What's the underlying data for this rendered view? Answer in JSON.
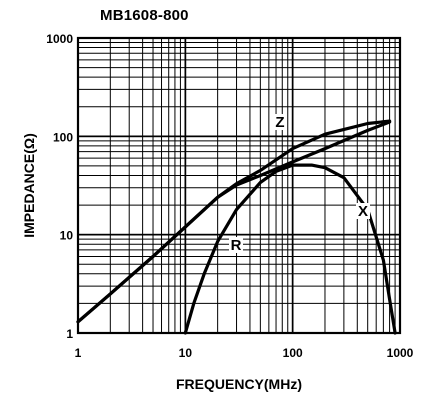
{
  "chart_data": {
    "type": "line",
    "title": "MB1608-800",
    "xlabel": "FREQUENCY(MHz)",
    "ylabel": "IMPEDANCE(Ω)",
    "xscale": "log",
    "yscale": "log",
    "xlim": [
      1,
      1000
    ],
    "ylim": [
      1,
      1000
    ],
    "xticks": [
      "1",
      "10",
      "100",
      "1000"
    ],
    "yticks": [
      "1",
      "10",
      "100",
      "1000"
    ],
    "grid": true,
    "series": [
      {
        "name": "Z",
        "x": [
          1,
          2,
          5,
          10,
          20,
          30,
          50,
          100,
          200,
          500,
          800
        ],
        "y": [
          1.3,
          2.5,
          6.0,
          12,
          24,
          33,
          45,
          75,
          105,
          135,
          143
        ]
      },
      {
        "name": "R",
        "x": [
          10,
          12,
          15,
          20,
          30,
          50,
          70,
          100,
          150,
          200,
          300,
          500,
          700,
          800,
          900
        ],
        "y": [
          1,
          2,
          4,
          8.5,
          18,
          34,
          44,
          51,
          51,
          48,
          38,
          18,
          5.5,
          2.2,
          1
        ]
      },
      {
        "name": "X",
        "x": [
          1,
          2,
          5,
          10,
          20,
          30,
          50,
          100,
          200,
          500,
          800
        ],
        "y": [
          1.3,
          2.5,
          6.0,
          12,
          24,
          32,
          40,
          55,
          75,
          115,
          140
        ]
      }
    ],
    "annotations": [
      "Z",
      "R",
      "X"
    ]
  }
}
